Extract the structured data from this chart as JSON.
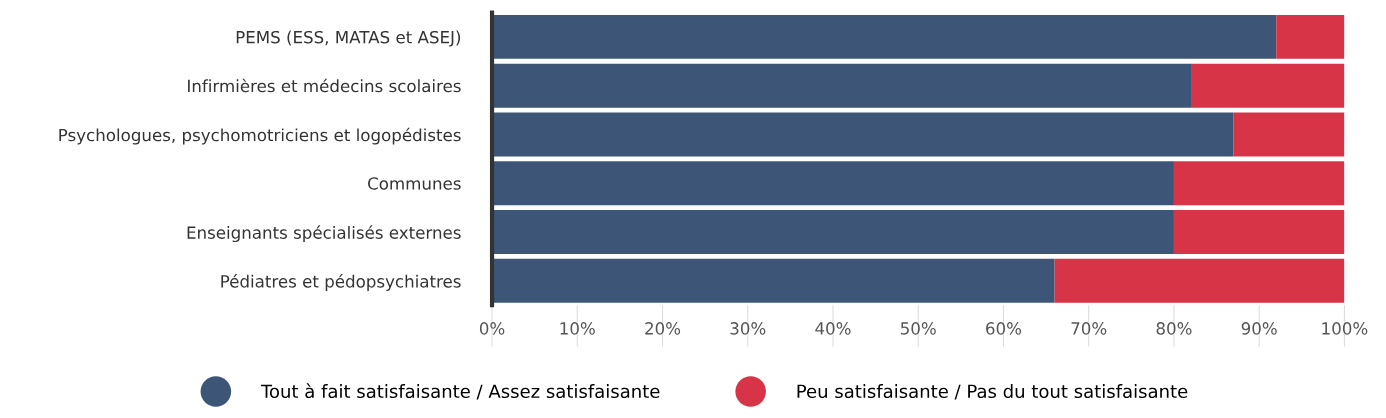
{
  "chart_data": {
    "type": "bar",
    "orientation": "horizontal",
    "stacked": true,
    "categories": [
      "PEMS (ESS, MATAS et ASEJ)",
      "Infirmières et médecins scolaires",
      "Psychologues, psychomotriciens et logopédistes",
      "Communes",
      "Enseignants spécialisés externes",
      "Pédiatres et pédopsychiatres"
    ],
    "series": [
      {
        "name": "Tout à fait satisfaisante / Assez satisfaisante",
        "color": "#3d5677",
        "values": [
          92,
          82,
          87,
          80,
          80,
          66
        ]
      },
      {
        "name": "Peu satisfaisante / Pas du tout satisfaisante",
        "color": "#d73547",
        "values": [
          8,
          18,
          13,
          20,
          20,
          34
        ]
      }
    ],
    "xlim": [
      0,
      100
    ],
    "xticks": [
      {
        "value": 0,
        "label": "0%"
      },
      {
        "value": 10,
        "label": "10%"
      },
      {
        "value": 20,
        "label": "20%"
      },
      {
        "value": 30,
        "label": "30%"
      },
      {
        "value": 40,
        "label": "40%"
      },
      {
        "value": 50,
        "label": "50%"
      },
      {
        "value": 60,
        "label": "60%"
      },
      {
        "value": 70,
        "label": "70%"
      },
      {
        "value": 80,
        "label": "80%"
      },
      {
        "value": 90,
        "label": "90%"
      },
      {
        "value": 100,
        "label": "100%"
      }
    ],
    "legend": "bottom"
  }
}
